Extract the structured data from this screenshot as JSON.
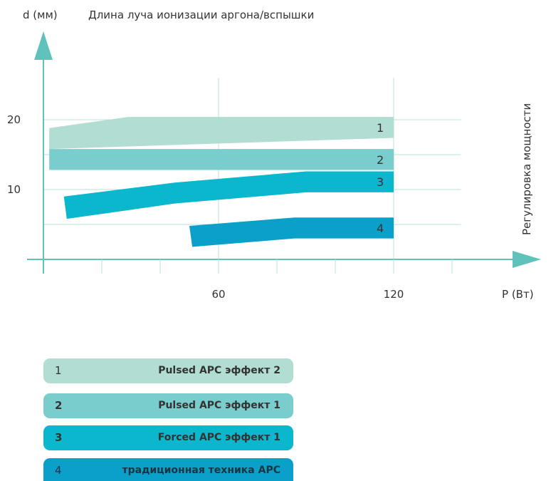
{
  "chart_data": {
    "type": "area",
    "title": "Длина луча ионизации аргона/вспышки",
    "ylabel": "d (мм)",
    "xlabel": "P (Вт)",
    "right_label": "Регулировка мощности",
    "xlim": [
      0,
      140
    ],
    "ylim": [
      0,
      27
    ],
    "x_ticks": [
      {
        "value": 60,
        "label": "60"
      },
      {
        "value": 120,
        "label": "120"
      }
    ],
    "x_minor_ticks": [
      20,
      40,
      60,
      80,
      100,
      120,
      140
    ],
    "y_ticks": [
      {
        "value": 10,
        "label": "10"
      },
      {
        "value": 20,
        "label": "20"
      }
    ],
    "y_grid": [
      5,
      10,
      15,
      20
    ],
    "grid": true,
    "series": [
      {
        "label": "1",
        "color": "#b1ddd2",
        "upper": [
          [
            2,
            18.8
          ],
          [
            29,
            20.4
          ],
          [
            120,
            20.4
          ]
        ],
        "lower": [
          [
            2,
            15.8
          ],
          [
            120,
            17.4
          ]
        ]
      },
      {
        "label": "2",
        "color": "#79cdcc",
        "upper": [
          [
            2,
            15.8
          ],
          [
            120,
            15.8
          ]
        ],
        "lower": [
          [
            2,
            12.8
          ],
          [
            120,
            12.8
          ]
        ]
      },
      {
        "label": "3",
        "color": "#0bb7cc",
        "upper": [
          [
            7,
            9.0
          ],
          [
            45,
            11.0
          ],
          [
            90,
            12.6
          ],
          [
            120,
            12.6
          ]
        ],
        "lower": [
          [
            8,
            5.8
          ],
          [
            45,
            8.0
          ],
          [
            90,
            9.6
          ],
          [
            120,
            9.6
          ]
        ]
      },
      {
        "label": "4",
        "color": "#0aa0c9",
        "upper": [
          [
            50,
            4.8
          ],
          [
            86,
            6.0
          ],
          [
            120,
            6.0
          ]
        ],
        "lower": [
          [
            51,
            1.8
          ],
          [
            86,
            3.0
          ],
          [
            120,
            3.0
          ]
        ]
      }
    ]
  },
  "legend": [
    {
      "num": "1",
      "label": "Pulsed APC эффект 2",
      "color": "#b1ddd2"
    },
    {
      "num": "2",
      "label": "Pulsed APC эффект 1",
      "color": "#79cdcc"
    },
    {
      "num": "3",
      "label": "Forced APC эффект 1",
      "color": "#0bb7cc"
    },
    {
      "num": "4",
      "label": "традиционная техника APC",
      "color": "#0aa0c9"
    }
  ],
  "colors": {
    "axis": "#5fc3bc",
    "grid": "#b8e0dd",
    "text": "#333333"
  }
}
